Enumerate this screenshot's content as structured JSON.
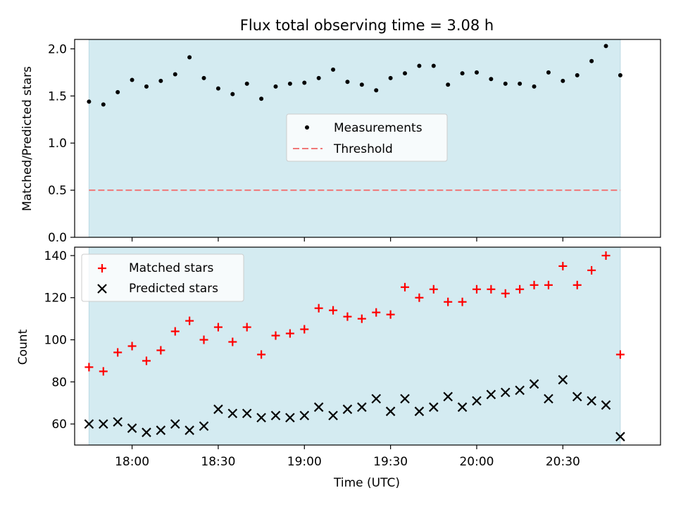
{
  "figure": {
    "title": "Flux total observing time = 3.08 h",
    "xlabel": "Time (UTC)"
  },
  "chart_data": [
    {
      "type": "scatter",
      "ylabel": "Matched/Predicted stars",
      "xlim": [
        "17:40",
        "21:04"
      ],
      "ylim": [
        0,
        2.1
      ],
      "yticks": [
        0.0,
        0.5,
        1.0,
        1.5,
        2.0
      ],
      "ytick_labels": [
        "0.0",
        "0.5",
        "1.0",
        "1.5",
        "2.0"
      ],
      "shaded_span": [
        "17:45",
        "20:50"
      ],
      "shade_color": "#d4ebf1",
      "grid": false,
      "legend_position": "center",
      "series": [
        {
          "name": "Measurements",
          "marker": "dot",
          "color": "#000000",
          "x": [
            "17:45",
            "17:50",
            "17:55",
            "18:00",
            "18:05",
            "18:10",
            "18:15",
            "18:20",
            "18:25",
            "18:30",
            "18:35",
            "18:40",
            "18:45",
            "18:50",
            "18:55",
            "19:00",
            "19:05",
            "19:10",
            "19:15",
            "19:20",
            "19:25",
            "19:30",
            "19:35",
            "19:40",
            "19:45",
            "19:50",
            "19:55",
            "20:00",
            "20:05",
            "20:10",
            "20:15",
            "20:20",
            "20:25",
            "20:30",
            "20:35",
            "20:40",
            "20:45",
            "20:50"
          ],
          "y": [
            1.44,
            1.41,
            1.54,
            1.67,
            1.6,
            1.66,
            1.73,
            1.91,
            1.69,
            1.58,
            1.52,
            1.63,
            1.47,
            1.6,
            1.63,
            1.64,
            1.69,
            1.78,
            1.65,
            1.62,
            1.56,
            1.69,
            1.74,
            1.82,
            1.82,
            1.62,
            1.74,
            1.75,
            1.68,
            1.63,
            1.63,
            1.6,
            1.75,
            1.66,
            1.72,
            1.87,
            2.03,
            1.72
          ]
        }
      ],
      "threshold": {
        "name": "Threshold",
        "value": 0.5,
        "color": "#f07878",
        "style": "dashed"
      }
    },
    {
      "type": "scatter",
      "ylabel": "Count",
      "xlim": [
        "17:40",
        "21:04"
      ],
      "ylim": [
        50,
        144
      ],
      "yticks": [
        60,
        80,
        100,
        120,
        140
      ],
      "ytick_labels": [
        "60",
        "80",
        "100",
        "120",
        "140"
      ],
      "xticks": [
        "18:00",
        "18:30",
        "19:00",
        "19:30",
        "20:00",
        "20:30"
      ],
      "xtick_labels": [
        "18:00",
        "18:30",
        "19:00",
        "19:30",
        "20:00",
        "20:30"
      ],
      "shaded_span": [
        "17:45",
        "20:50"
      ],
      "shade_color": "#d4ebf1",
      "grid": false,
      "legend_position": "top-left",
      "series": [
        {
          "name": "Matched stars",
          "marker": "plus",
          "color": "#ff0000",
          "x": [
            "17:45",
            "17:50",
            "17:55",
            "18:00",
            "18:05",
            "18:10",
            "18:15",
            "18:20",
            "18:25",
            "18:30",
            "18:35",
            "18:40",
            "18:45",
            "18:50",
            "18:55",
            "19:00",
            "19:05",
            "19:10",
            "19:15",
            "19:20",
            "19:25",
            "19:30",
            "19:35",
            "19:40",
            "19:45",
            "19:50",
            "19:55",
            "20:00",
            "20:05",
            "20:10",
            "20:15",
            "20:20",
            "20:25",
            "20:30",
            "20:35",
            "20:40",
            "20:45",
            "20:50"
          ],
          "y": [
            87,
            85,
            94,
            97,
            90,
            95,
            104,
            109,
            100,
            106,
            99,
            106,
            93,
            102,
            103,
            105,
            115,
            114,
            111,
            110,
            113,
            112,
            125,
            120,
            124,
            118,
            118,
            124,
            124,
            122,
            124,
            126,
            126,
            135,
            126,
            133,
            140,
            93
          ]
        },
        {
          "name": "Predicted stars",
          "marker": "x",
          "color": "#000000",
          "x": [
            "17:45",
            "17:50",
            "17:55",
            "18:00",
            "18:05",
            "18:10",
            "18:15",
            "18:20",
            "18:25",
            "18:30",
            "18:35",
            "18:40",
            "18:45",
            "18:50",
            "18:55",
            "19:00",
            "19:05",
            "19:10",
            "19:15",
            "19:20",
            "19:25",
            "19:30",
            "19:35",
            "19:40",
            "19:45",
            "19:50",
            "19:55",
            "20:00",
            "20:05",
            "20:10",
            "20:15",
            "20:20",
            "20:25",
            "20:30",
            "20:35",
            "20:40",
            "20:45",
            "20:50"
          ],
          "y": [
            60,
            60,
            61,
            58,
            56,
            57,
            60,
            57,
            59,
            67,
            65,
            65,
            63,
            64,
            63,
            64,
            68,
            64,
            67,
            68,
            72,
            66,
            72,
            66,
            68,
            73,
            68,
            71,
            74,
            75,
            76,
            79,
            72,
            81,
            73,
            71,
            69,
            54
          ]
        }
      ]
    }
  ]
}
